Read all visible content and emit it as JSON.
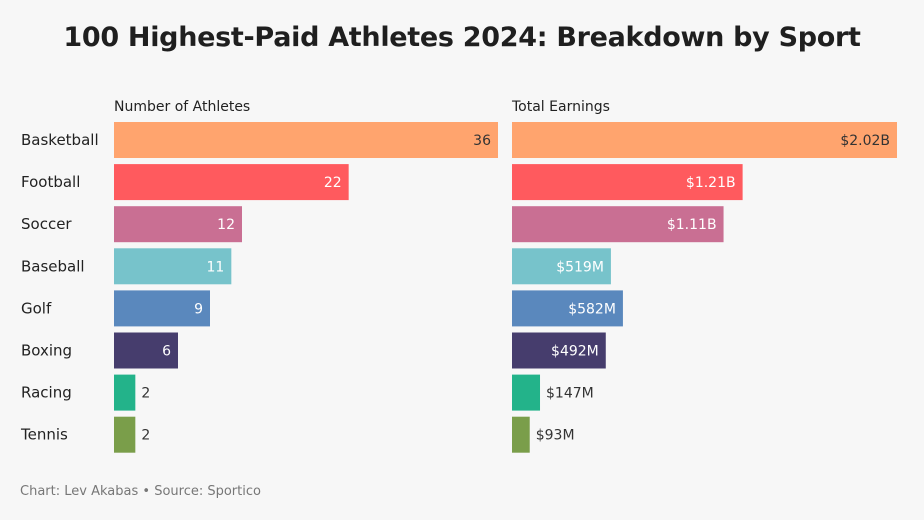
{
  "title": "100 Highest-Paid Athletes 2024: Breakdown by Sport",
  "footer": {
    "credit": "Chart: Lev Akabas",
    "separator": "•",
    "source": "Source: Sportico"
  },
  "chart_data": {
    "type": "bar",
    "orientation": "horizontal",
    "title": "100 Highest-Paid Athletes 2024: Breakdown by Sport",
    "categories": [
      "Basketball",
      "Football",
      "Soccer",
      "Baseball",
      "Golf",
      "Boxing",
      "Racing",
      "Tennis"
    ],
    "colors": [
      "#ffa46e",
      "#ff5a5e",
      "#c96f93",
      "#77c3cb",
      "#5a88bd",
      "#463d6d",
      "#23b38a",
      "#7a9e4a"
    ],
    "panels": [
      {
        "name": "athletes",
        "header": "Number of Athletes",
        "values": [
          36,
          22,
          12,
          11,
          9,
          6,
          2,
          2
        ],
        "labels": [
          "36",
          "22",
          "12",
          "11",
          "9",
          "6",
          "2",
          "2"
        ],
        "xlim": [
          0,
          36
        ]
      },
      {
        "name": "earnings",
        "header": "Total Earnings",
        "unit": "USD millions",
        "values": [
          2020,
          1210,
          1110,
          519,
          582,
          492,
          147,
          93
        ],
        "labels": [
          "$2.02B",
          "$1.21B",
          "$1.11B",
          "$519M",
          "$582M",
          "$492M",
          "$147M",
          "$93M"
        ],
        "xlim": [
          0,
          2020
        ]
      }
    ]
  }
}
